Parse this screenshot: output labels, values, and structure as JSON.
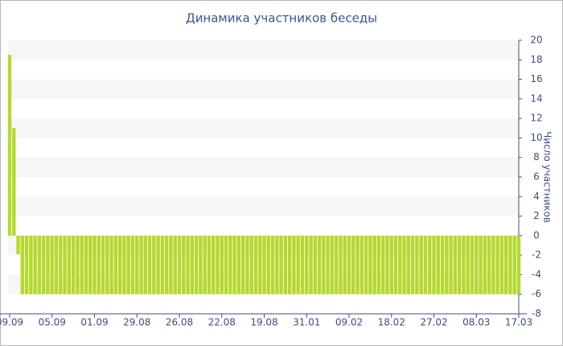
{
  "chart_data": {
    "type": "bar",
    "title": "Динамика участников беседы",
    "y_axis_label": "Число участников",
    "categories": [
      "09.09",
      null,
      null,
      null,
      null,
      null,
      null,
      null,
      null,
      null,
      "05.09",
      null,
      null,
      null,
      null,
      null,
      null,
      null,
      null,
      null,
      "01.09",
      null,
      null,
      null,
      null,
      null,
      null,
      null,
      null,
      null,
      "29.08",
      null,
      null,
      null,
      null,
      null,
      null,
      null,
      null,
      null,
      "26.08",
      null,
      null,
      null,
      null,
      null,
      null,
      null,
      null,
      null,
      "22.08",
      null,
      null,
      null,
      null,
      null,
      null,
      null,
      null,
      null,
      "19.08",
      null,
      null,
      null,
      null,
      null,
      null,
      null,
      null,
      null,
      "31.01",
      null,
      null,
      null,
      null,
      null,
      null,
      null,
      null,
      null,
      "09.02",
      null,
      null,
      null,
      null,
      null,
      null,
      null,
      null,
      null,
      "18.02",
      null,
      null,
      null,
      null,
      null,
      null,
      null,
      null,
      null,
      "27.02",
      null,
      null,
      null,
      null,
      null,
      null,
      null,
      null,
      null,
      "08.03",
      null,
      null,
      null,
      null,
      null,
      null,
      null,
      null,
      null,
      "17.03"
    ],
    "values": [
      18.5,
      11,
      -1.9,
      -6,
      -6,
      -6,
      -6,
      -6,
      -6,
      -6,
      -6,
      -6,
      -6,
      -6,
      -6,
      -6,
      -6,
      -6,
      -6,
      -6,
      -6,
      -6,
      -6,
      -6,
      -6,
      -6,
      -6,
      -6,
      -6,
      -6,
      -6,
      -6,
      -6,
      -6,
      -6,
      -6,
      -6,
      -6,
      -6,
      -6,
      -6,
      -6,
      -6,
      -6,
      -6,
      -6,
      -6,
      -6,
      -6,
      -6,
      -6,
      -6,
      -6,
      -6,
      -6,
      -6,
      -6,
      -6,
      -6,
      -6,
      -6,
      -6,
      -6,
      -6,
      -6,
      -6,
      -6,
      -6,
      -6,
      -6,
      -6,
      -6,
      -6,
      -6,
      -6,
      -6,
      -6,
      -6,
      -6,
      -6,
      -6,
      -6,
      -6,
      -6,
      -6,
      -6,
      -6,
      -6,
      -6,
      -6,
      -6,
      -6,
      -6,
      -6,
      -6,
      -6,
      -6,
      -6,
      -6,
      -6,
      -6,
      -6,
      -6,
      -6,
      -6,
      -6,
      -6,
      -6,
      -6,
      -6,
      -6,
      -6,
      -6,
      -6,
      -6,
      -6,
      -6,
      -6,
      -6,
      -6,
      -6
    ],
    "color": "#b5d92e",
    "ylim": [
      -8,
      20
    ],
    "yticks": [
      -8,
      -6,
      -4,
      -2,
      0,
      2,
      4,
      6,
      8,
      10,
      12,
      14,
      16,
      18,
      20
    ],
    "grid": true
  }
}
